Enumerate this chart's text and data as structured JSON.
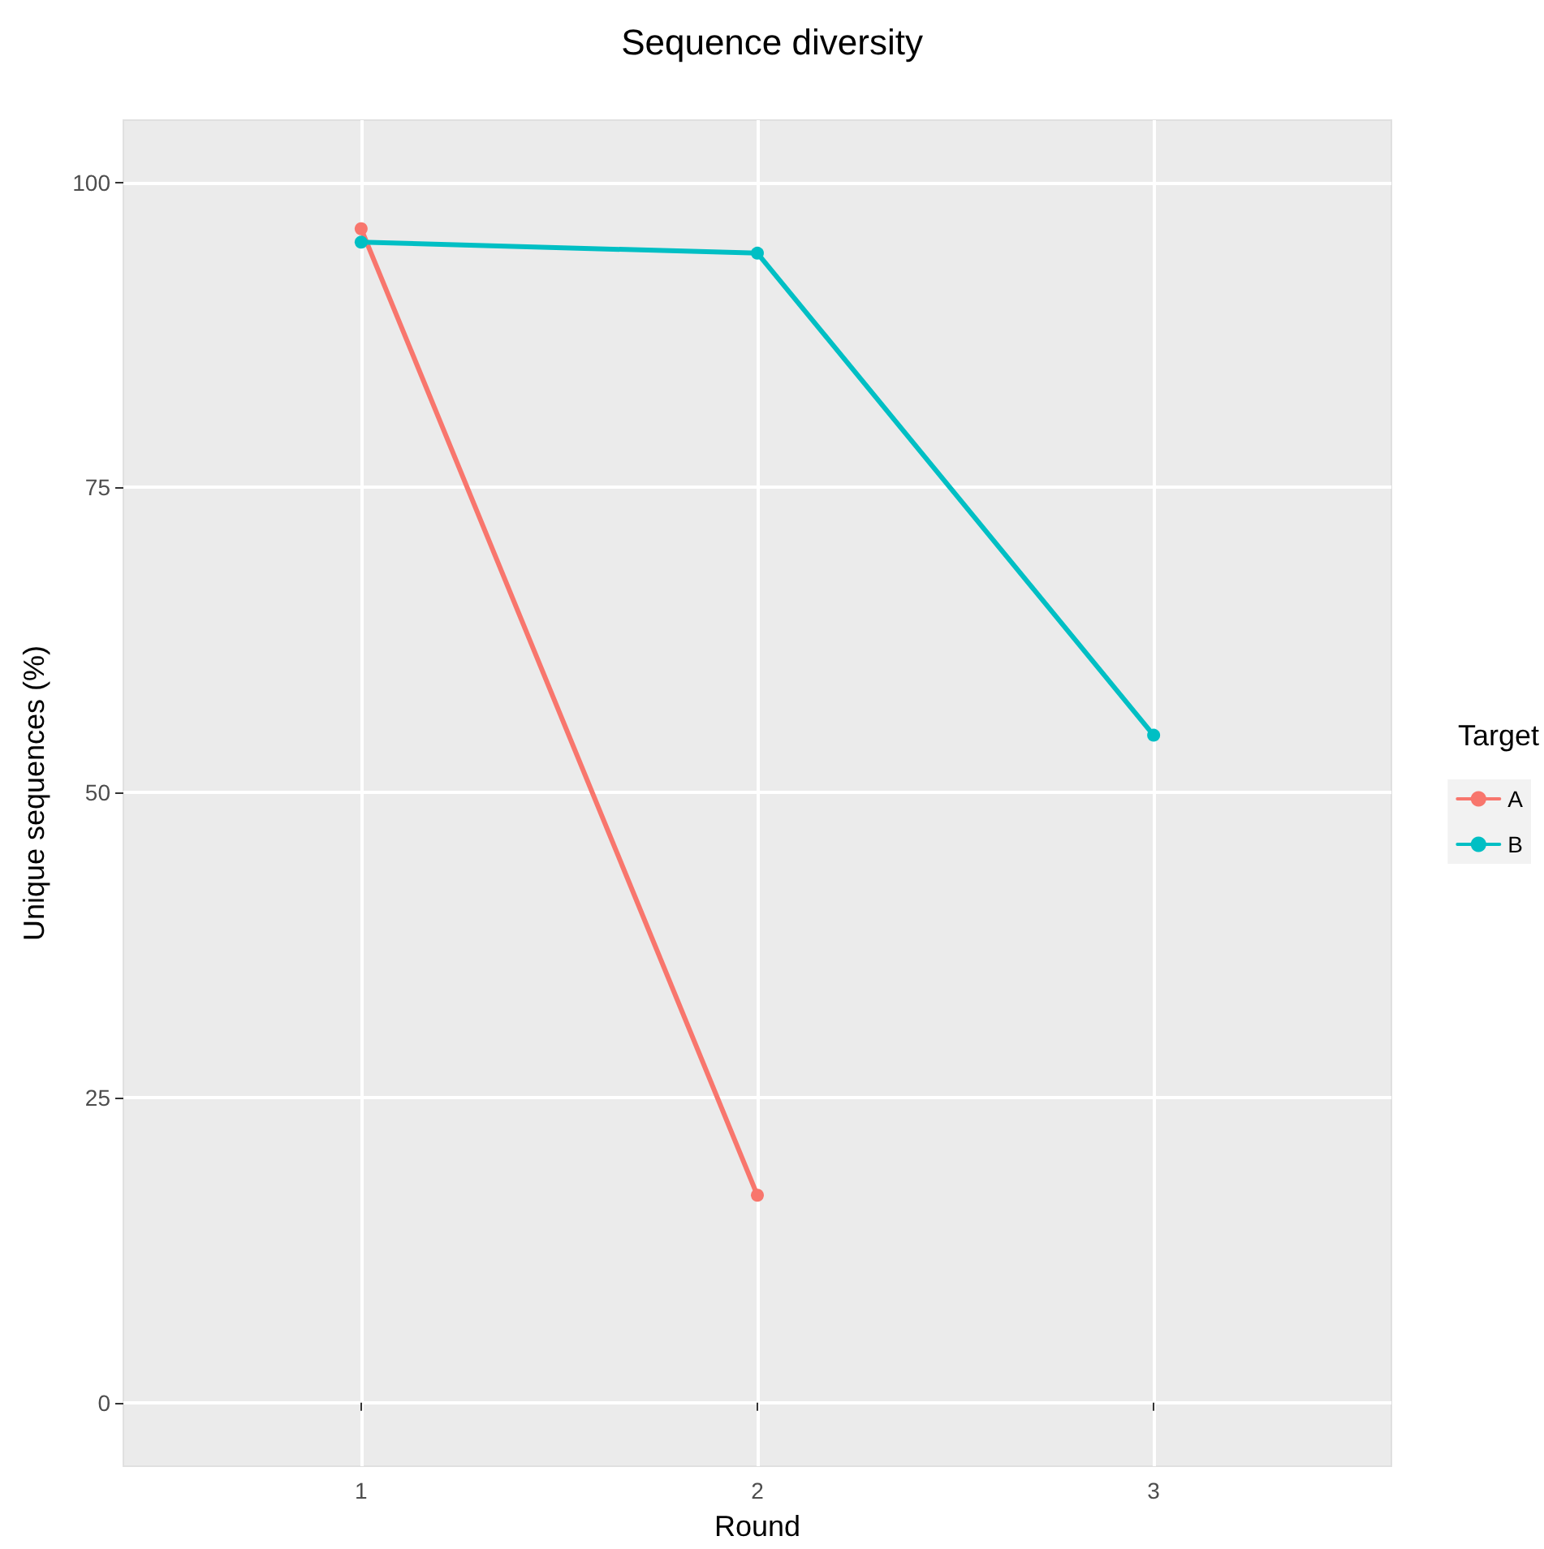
{
  "chart_data": {
    "type": "line",
    "title": "Sequence diversity",
    "xlabel": "Round",
    "ylabel": "Unique sequences (%)",
    "legend_title": "Target",
    "xlim": [
      0.4,
      3.6
    ],
    "xticks": [
      1,
      2,
      3
    ],
    "ylim": [
      -5.2,
      105.1
    ],
    "yticks": [
      0,
      25,
      50,
      75,
      100
    ],
    "series": [
      {
        "name": "A",
        "color": "#f8766d",
        "x": [
          1,
          2
        ],
        "values": [
          96.2,
          17
        ]
      },
      {
        "name": "B",
        "color": "#00bfc4",
        "x": [
          1,
          2,
          3
        ],
        "values": [
          95.1,
          94.2,
          54.7
        ]
      }
    ],
    "grid": true,
    "legend": "right",
    "marker": "circle",
    "line_style": "solid"
  }
}
